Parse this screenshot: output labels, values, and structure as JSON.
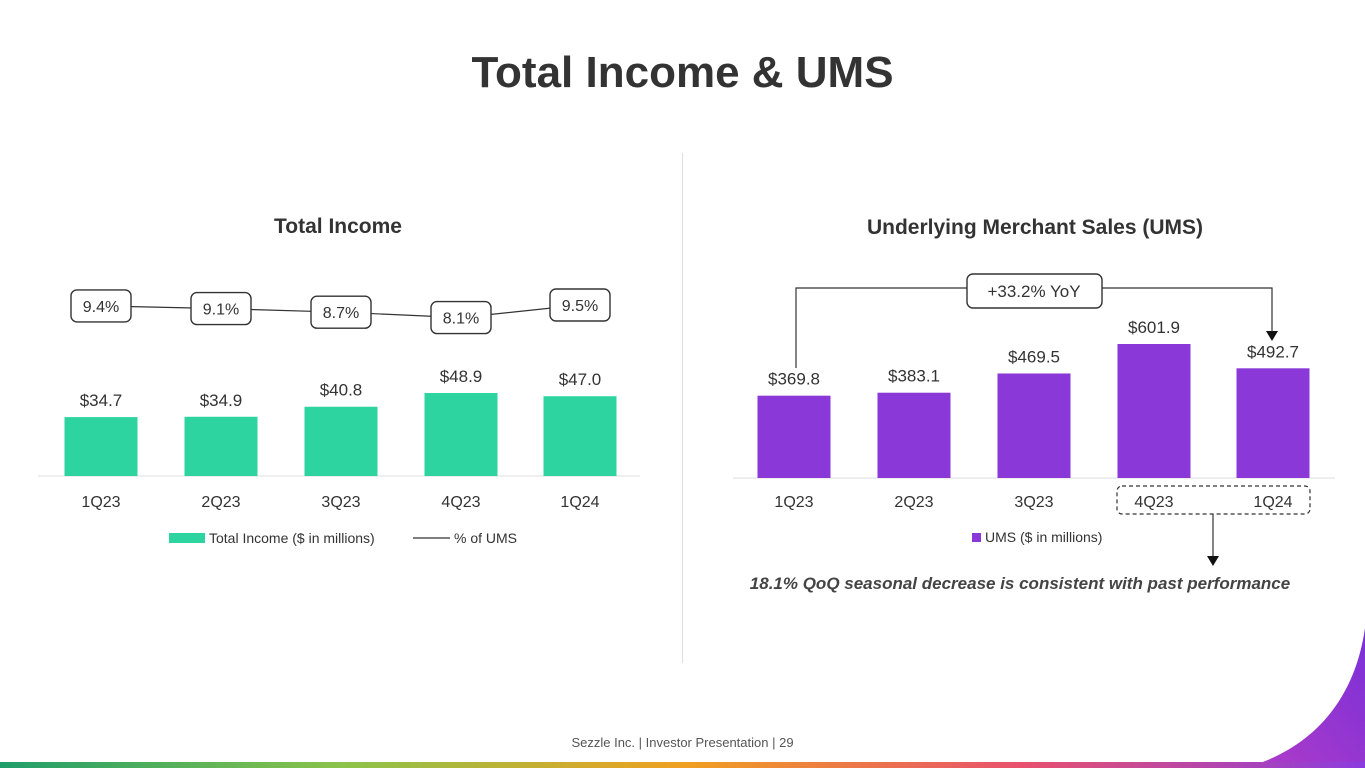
{
  "page": {
    "title": "Total Income & UMS",
    "footer": "Sezzle Inc. | Investor Presentation | 29"
  },
  "chart_data": [
    {
      "type": "bar",
      "title": "Total Income",
      "categories": [
        "1Q23",
        "2Q23",
        "3Q23",
        "4Q23",
        "1Q24"
      ],
      "series": [
        {
          "name": "Total Income ($ in millions)",
          "type": "bar",
          "values": [
            34.7,
            34.9,
            40.8,
            48.9,
            47.0
          ],
          "labels": [
            "$34.7",
            "$34.9",
            "$40.8",
            "$48.9",
            "$47.0"
          ],
          "color": "#2dd4a0"
        },
        {
          "name": "% of UMS",
          "type": "line",
          "values": [
            9.4,
            9.1,
            8.7,
            8.1,
            9.5
          ],
          "labels": [
            "9.4%",
            "9.1%",
            "8.7%",
            "8.1%",
            "9.5%"
          ],
          "color": "#333333"
        }
      ],
      "legend": "bottom",
      "grid": false
    },
    {
      "type": "bar",
      "title": "Underlying Merchant Sales (UMS)",
      "categories": [
        "1Q23",
        "2Q23",
        "3Q23",
        "4Q23",
        "1Q24"
      ],
      "series": [
        {
          "name": "UMS ($ in millions)",
          "values": [
            369.8,
            383.1,
            469.5,
            601.9,
            492.7
          ],
          "labels": [
            "$369.8",
            "$383.1",
            "$469.5",
            "$601.9",
            "$492.7"
          ],
          "color": "#8a38d8"
        }
      ],
      "legend": "bottom",
      "grid": false,
      "annotations": {
        "yoy": "+33.2% YoY",
        "qoq_note": "18.1% QoQ seasonal decrease is consistent with past performance"
      }
    }
  ]
}
